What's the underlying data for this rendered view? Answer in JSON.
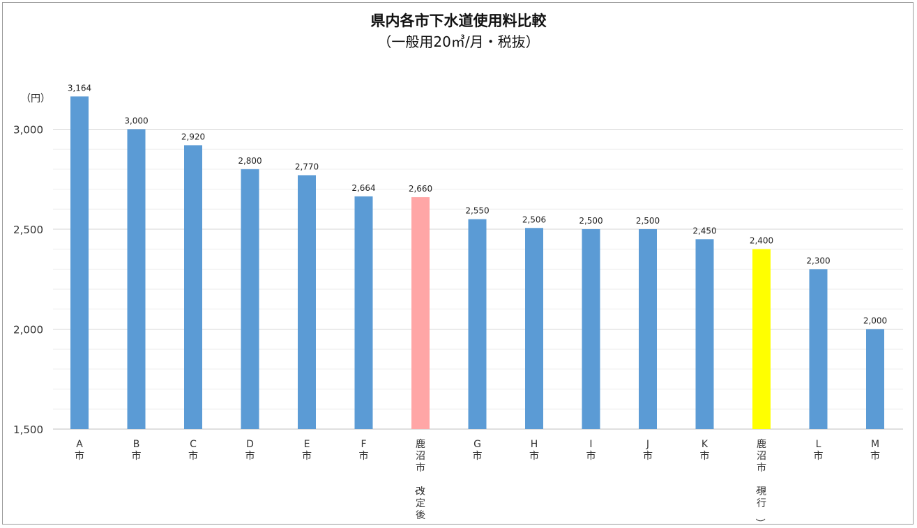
{
  "chart_data": {
    "type": "bar",
    "title": "県内各市下水道使用料比較",
    "subtitle": "（一般用20㎥/月・税抜）",
    "ylabel": "（円）",
    "xlabel": "",
    "ylim": [
      1500,
      3200
    ],
    "yticks": [
      1500,
      2000,
      2500,
      3000
    ],
    "ytick_labels": [
      "1,500",
      "2,000",
      "2,500",
      "3,000"
    ],
    "minor_grid_step": 100,
    "grid": true,
    "legend": "none",
    "categories": [
      "A市",
      "B市",
      "C市",
      "D市",
      "E市",
      "F市",
      "鹿沼市（改定後）",
      "G市",
      "H市",
      "I市",
      "J市",
      "K市",
      "鹿沼市（現行）",
      "L市",
      "M市"
    ],
    "values": [
      3164,
      3000,
      2920,
      2800,
      2770,
      2664,
      2660,
      2550,
      2506,
      2500,
      2500,
      2450,
      2400,
      2300,
      2000
    ],
    "value_labels": [
      "3,164",
      "3,000",
      "2,920",
      "2,800",
      "2,770",
      "2,664",
      "2,660",
      "2,550",
      "2,506",
      "2,500",
      "2,500",
      "2,450",
      "2,400",
      "2,300",
      "2,000"
    ],
    "bar_colors": [
      "#5b9bd5",
      "#5b9bd5",
      "#5b9bd5",
      "#5b9bd5",
      "#5b9bd5",
      "#5b9bd5",
      "#ffa6a6",
      "#5b9bd5",
      "#5b9bd5",
      "#5b9bd5",
      "#5b9bd5",
      "#5b9bd5",
      "#ffff00",
      "#5b9bd5",
      "#5b9bd5"
    ]
  }
}
